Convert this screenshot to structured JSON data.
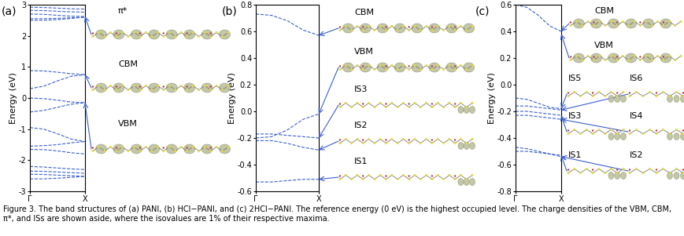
{
  "caption": "Figure 3. The band structures of (a) PANI, (b) HCl−PANI, and (c) 2HCl−PANI. The reference energy (0 eV) is the highest occupied level. The charge densities of the VBM, CBM, π*, and ISs are shown aside, where the isovalues are 1% of their respective maxima.",
  "chart_data": [
    {
      "type": "line",
      "title": "(a)",
      "ylabel": "Energy (eV)",
      "color": "#3a5fcd",
      "line_style": "dashed",
      "x": [
        0,
        0.25,
        0.5,
        0.75,
        1.0
      ],
      "xlim": [
        0,
        1
      ],
      "xticks": [
        {
          "value": 0,
          "label": "Γ"
        },
        {
          "value": 1,
          "label": "X"
        }
      ],
      "ylim": [
        -3,
        3
      ],
      "yticks": [
        -3,
        -2,
        -1,
        0,
        1,
        2,
        3
      ],
      "series": [
        {
          "values": [
            2.92,
            2.91,
            2.89,
            2.87,
            2.86
          ]
        },
        {
          "values": [
            2.82,
            2.81,
            2.79,
            2.77,
            2.76
          ]
        },
        {
          "values": [
            2.7,
            2.69,
            2.66,
            2.63,
            2.62
          ]
        },
        {
          "values": [
            2.55,
            2.55,
            2.56,
            2.58,
            2.6
          ]
        },
        {
          "values": [
            2.5,
            2.5,
            2.52,
            2.56,
            2.6
          ]
        },
        {
          "values": [
            0.88,
            0.87,
            0.83,
            0.78,
            0.75
          ]
        },
        {
          "values": [
            0.3,
            0.38,
            0.55,
            0.7,
            0.75
          ]
        },
        {
          "values": [
            0.0,
            -0.02,
            -0.07,
            -0.13,
            -0.15
          ]
        },
        {
          "values": [
            -0.45,
            -0.4,
            -0.3,
            -0.2,
            -0.15
          ]
        },
        {
          "values": [
            -0.95,
            -1.0,
            -1.15,
            -1.32,
            -1.4
          ]
        },
        {
          "values": [
            -1.55,
            -1.53,
            -1.5,
            -1.44,
            -1.4
          ]
        },
        {
          "values": [
            -1.65,
            -1.66,
            -1.7,
            -1.76,
            -1.8
          ]
        },
        {
          "values": [
            -2.2,
            -2.22,
            -2.25,
            -2.28,
            -2.3
          ]
        },
        {
          "values": [
            -2.35,
            -2.36,
            -2.38,
            -2.4,
            -2.42
          ]
        },
        {
          "values": [
            -2.45,
            -2.46,
            -2.48,
            -2.5,
            -2.52
          ]
        },
        {
          "values": [
            -2.6,
            -2.6,
            -2.58,
            -2.55,
            -2.52
          ]
        }
      ],
      "annotations": [
        {
          "text": "π*",
          "x": 1,
          "y": 2.62
        },
        {
          "text": "CBM",
          "x": 1,
          "y": 0.75
        },
        {
          "text": "VBM",
          "x": 1,
          "y": -0.15
        }
      ]
    },
    {
      "type": "line",
      "title": "(b)",
      "ylabel": "Energy (eV)",
      "color": "#3a5fcd",
      "line_style": "dashed",
      "x": [
        0,
        0.25,
        0.5,
        0.75,
        1.0
      ],
      "xlim": [
        0,
        1
      ],
      "xticks": [
        {
          "value": 0,
          "label": "Γ"
        },
        {
          "value": 1,
          "label": "X"
        }
      ],
      "ylim": [
        -0.6,
        0.8
      ],
      "yticks": [
        -0.6,
        -0.4,
        -0.2,
        0.0,
        0.2,
        0.4,
        0.6,
        0.8
      ],
      "series": [
        {
          "values": [
            0.73,
            0.72,
            0.68,
            0.61,
            0.57
          ]
        },
        {
          "values": [
            -0.2,
            -0.19,
            -0.14,
            -0.06,
            -0.02
          ]
        },
        {
          "values": [
            -0.17,
            -0.17,
            -0.18,
            -0.19,
            -0.2
          ]
        },
        {
          "values": [
            -0.22,
            -0.22,
            -0.24,
            -0.27,
            -0.29
          ]
        },
        {
          "values": [
            -0.53,
            -0.53,
            -0.52,
            -0.51,
            -0.51
          ]
        }
      ],
      "annotations": [
        {
          "text": "CBM",
          "x": 1,
          "y": 0.57
        },
        {
          "text": "VBM",
          "x": 1,
          "y": -0.02
        },
        {
          "text": "IS3",
          "x": 1,
          "y": -0.2
        },
        {
          "text": "IS2",
          "x": 1,
          "y": -0.29
        },
        {
          "text": "IS1",
          "x": 1,
          "y": -0.51
        }
      ]
    },
    {
      "type": "line",
      "title": "(c)",
      "ylabel": "Energy (eV)",
      "color": "#3a5fcd",
      "line_style": "dashed",
      "x": [
        0,
        0.25,
        0.5,
        0.75,
        1.0
      ],
      "xlim": [
        0,
        1
      ],
      "xticks": [
        {
          "value": 0,
          "label": "Γ"
        },
        {
          "value": 1,
          "label": "X"
        }
      ],
      "ylim": [
        -0.8,
        0.6
      ],
      "yticks": [
        -0.8,
        -0.6,
        -0.4,
        -0.2,
        0.0,
        0.2,
        0.4,
        0.6
      ],
      "series": [
        {
          "values": [
            0.6,
            0.58,
            0.52,
            0.44,
            0.4
          ]
        },
        {
          "values": [
            -0.1,
            -0.11,
            -0.14,
            -0.17,
            -0.18
          ]
        },
        {
          "values": [
            -0.16,
            -0.16,
            -0.17,
            -0.18,
            -0.19
          ]
        },
        {
          "values": [
            -0.2,
            -0.2,
            -0.21,
            -0.22,
            -0.23
          ]
        },
        {
          "values": [
            -0.23,
            -0.23,
            -0.24,
            -0.25,
            -0.26
          ]
        },
        {
          "values": [
            -0.47,
            -0.48,
            -0.5,
            -0.52,
            -0.53
          ]
        },
        {
          "values": [
            -0.5,
            -0.5,
            -0.51,
            -0.52,
            -0.54
          ]
        }
      ],
      "annotations": [
        {
          "text": "CBM",
          "x": 1,
          "y": 0.4
        },
        {
          "text": "VBM",
          "x": 1,
          "y": 0.38
        },
        {
          "text": "IS5",
          "x": 1,
          "y": -0.18
        },
        {
          "text": "IS6",
          "x": 1,
          "y": -0.19
        },
        {
          "text": "IS3",
          "x": 1,
          "y": -0.23
        },
        {
          "text": "IS4",
          "x": 1,
          "y": -0.26
        },
        {
          "text": "IS1",
          "x": 1,
          "y": -0.53
        },
        {
          "text": "IS2",
          "x": 1,
          "y": -0.54
        }
      ]
    }
  ]
}
